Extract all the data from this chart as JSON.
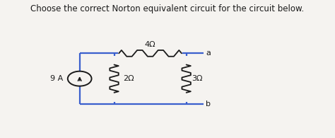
{
  "title": "Choose the correct Norton equivalent circuit for the circuit below.",
  "title_fontsize": 8.5,
  "bg_color": "#f5f3f0",
  "wire_color": "#3a5fcd",
  "component_color": "#1a1a1a",
  "text_color": "#1a1a1a",
  "current_source_value": "9 A",
  "r1_label": "4Ω",
  "r2_label": "2Ω",
  "r3_label": "3Ω",
  "node_a": "a",
  "node_b": "b",
  "xlim": [
    0,
    10
  ],
  "ylim": [
    0,
    5
  ],
  "figsize": [
    4.74,
    1.95
  ],
  "dpi": 100
}
